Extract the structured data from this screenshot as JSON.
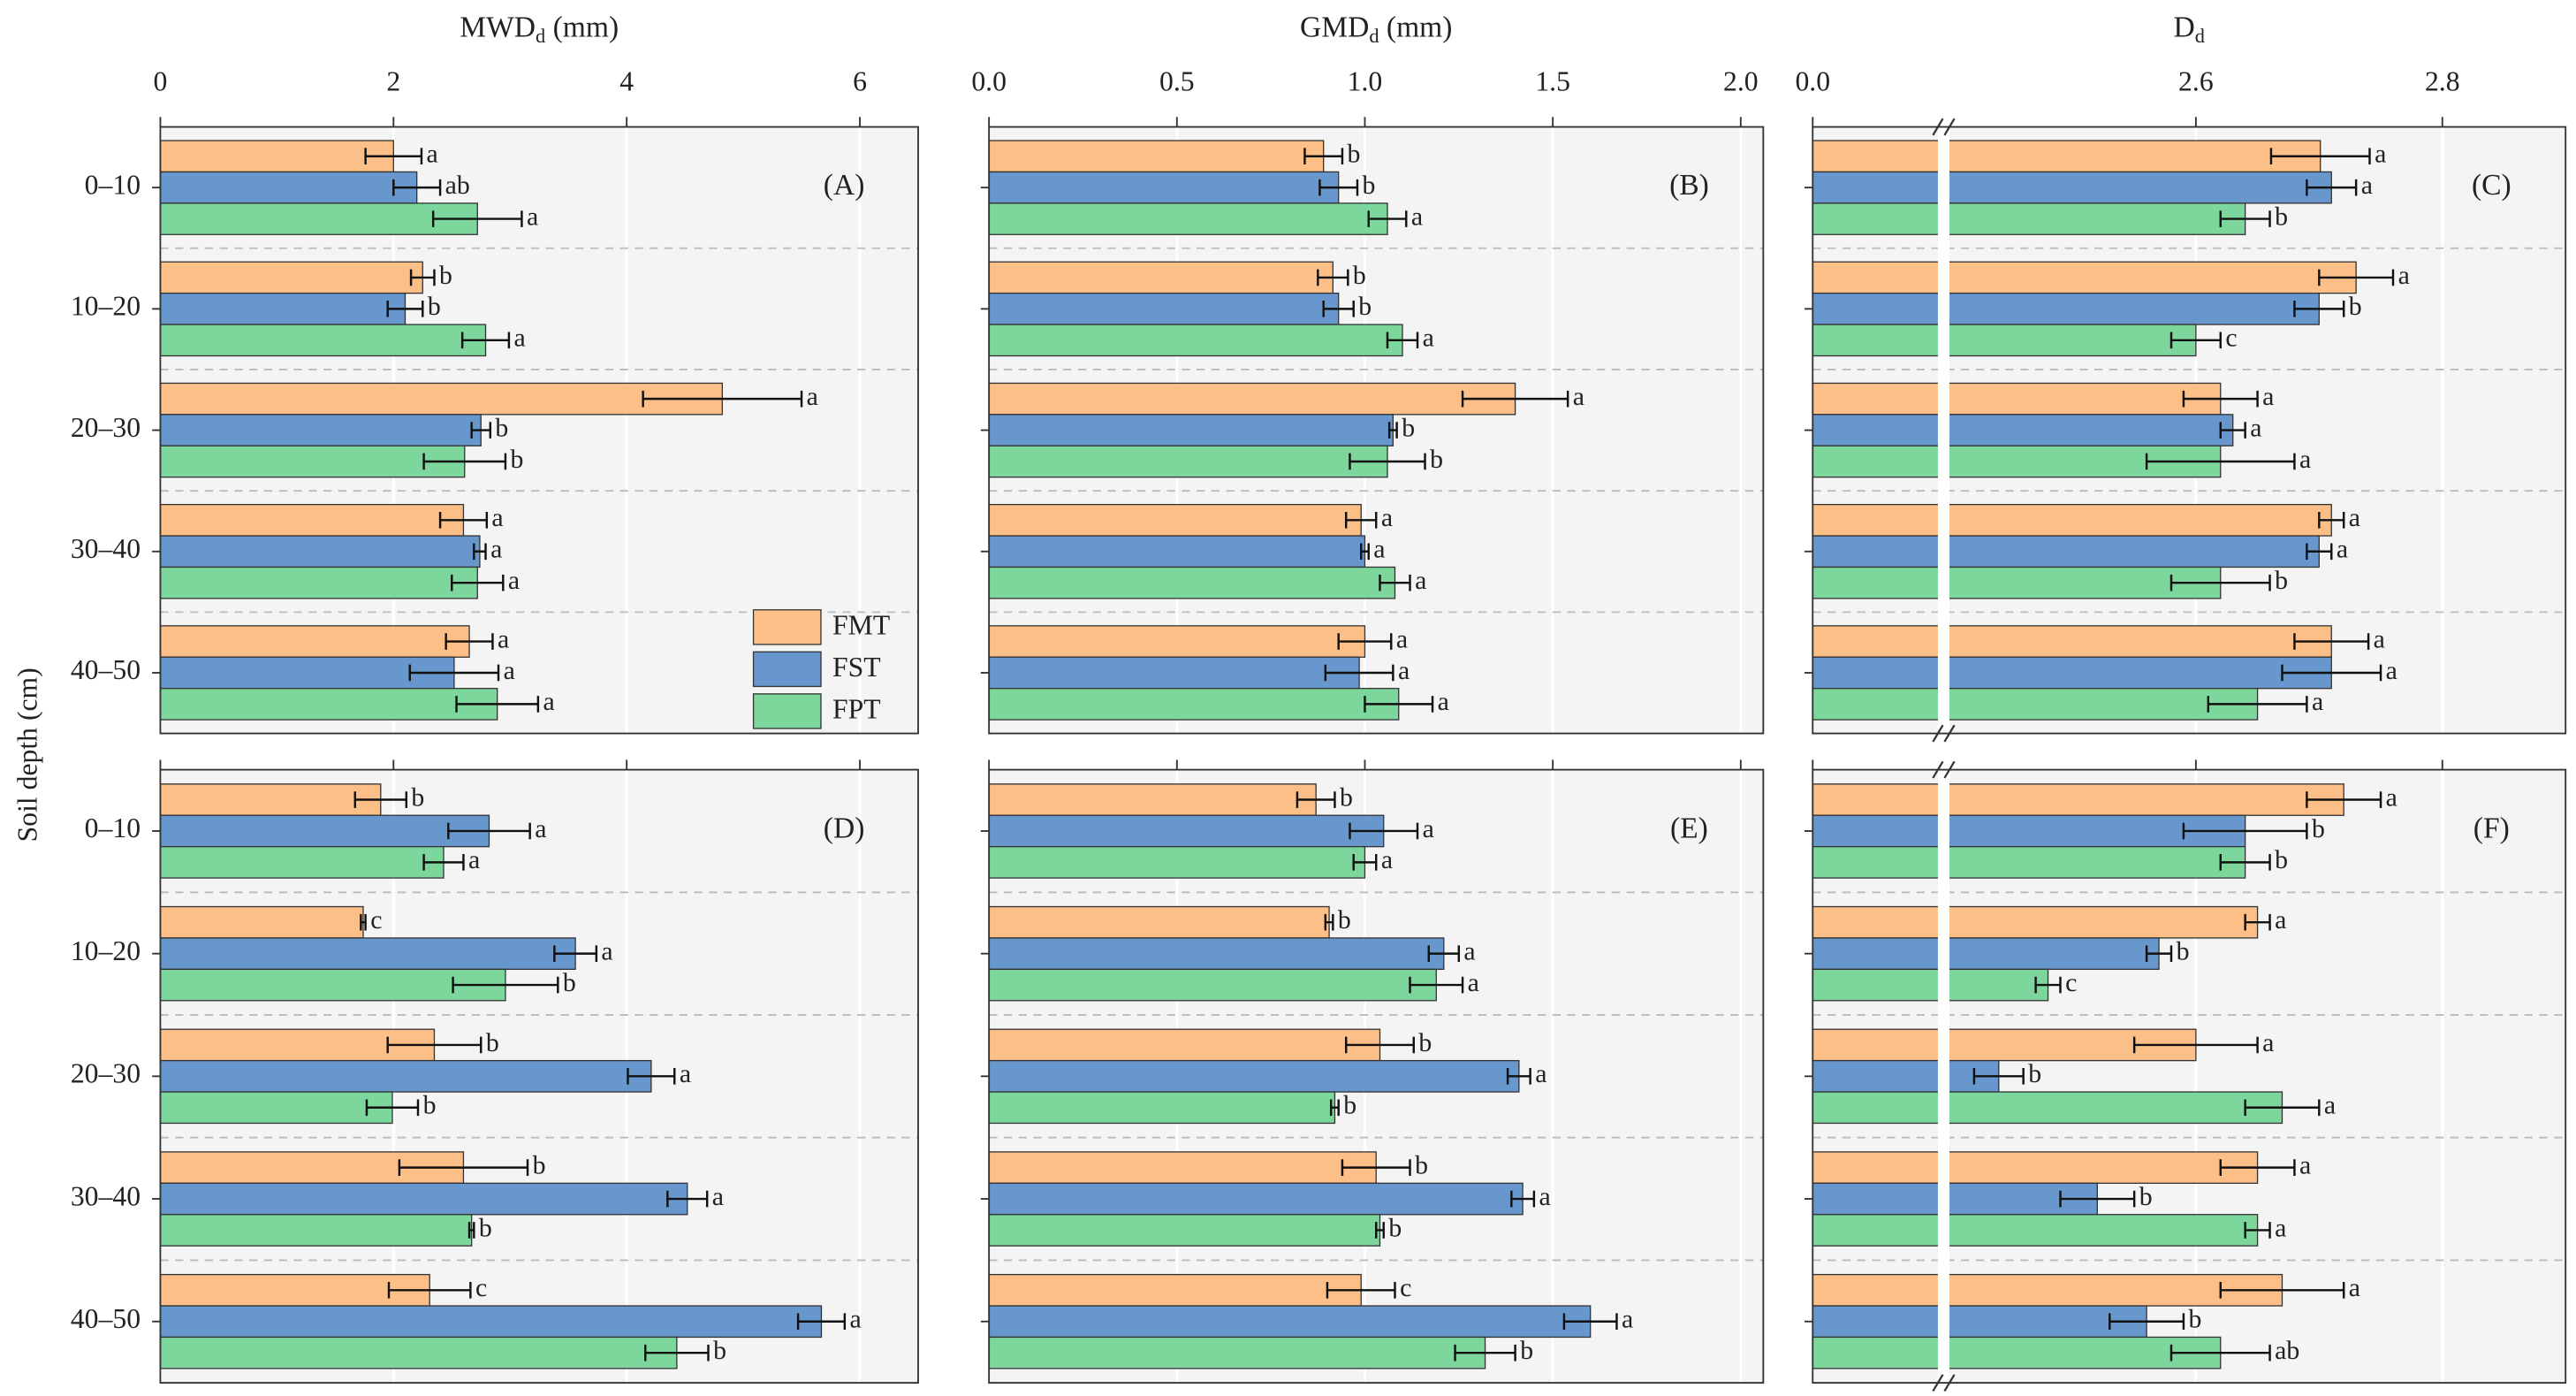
{
  "ylabel": "Soil depth (cm)",
  "legend": {
    "position": "lower right",
    "entries": [
      {
        "name": "FMT",
        "color": "#fbbf87"
      },
      {
        "name": "FST",
        "color": "#6797cc"
      },
      {
        "name": "FPT",
        "color": "#7dd69b"
      }
    ]
  },
  "chart_data": [
    {
      "type": "bar",
      "orientation": "horizontal",
      "panel": "(A)",
      "xlabel": [
        "MWD",
        "d",
        " (mm)"
      ],
      "xlim": [
        0,
        6.5
      ],
      "xticks": [
        0,
        2,
        4,
        6
      ],
      "grid": true,
      "categories": [
        "0–10",
        "10–20",
        "20–30",
        "30–40",
        "40–50"
      ],
      "series": [
        {
          "values": [
            2.0,
            2.25,
            4.82,
            2.6,
            2.65
          ],
          "errors": [
            0.24,
            0.1,
            0.68,
            0.2,
            0.2
          ],
          "letters": [
            "a",
            "b",
            "a",
            "a",
            "a"
          ]
        },
        {
          "values": [
            2.2,
            2.1,
            2.75,
            2.74,
            2.52
          ],
          "errors": [
            0.2,
            0.15,
            0.08,
            0.05,
            0.38
          ],
          "letters": [
            "ab",
            "b",
            "b",
            "a",
            "a"
          ]
        },
        {
          "values": [
            2.72,
            2.79,
            2.61,
            2.72,
            2.89
          ],
          "errors": [
            0.38,
            0.2,
            0.35,
            0.22,
            0.35
          ],
          "letters": [
            "a",
            "a",
            "b",
            "a",
            "a"
          ]
        }
      ]
    },
    {
      "type": "bar",
      "orientation": "horizontal",
      "panel": "(B)",
      "xlabel": [
        "GMD",
        "d",
        " (mm)"
      ],
      "xlim": [
        0,
        2.06
      ],
      "xticks": [
        {
          "value": 0,
          "label": "0.0"
        },
        0.5,
        {
          "value": 1,
          "label": "1.0"
        },
        1.5,
        {
          "value": 2,
          "label": "2.0"
        }
      ],
      "grid": true,
      "series": [
        {
          "values": [
            0.89,
            0.915,
            1.4,
            0.99,
            1.0
          ],
          "errors": [
            0.05,
            0.04,
            0.14,
            0.04,
            0.07
          ],
          "letters": [
            "b",
            "b",
            "a",
            "a",
            "a"
          ]
        },
        {
          "values": [
            0.93,
            0.93,
            1.075,
            1.0,
            0.985
          ],
          "errors": [
            0.05,
            0.04,
            0.01,
            0.01,
            0.09
          ],
          "letters": [
            "b",
            "b",
            "b",
            "a",
            "a"
          ]
        },
        {
          "values": [
            1.06,
            1.1,
            1.06,
            1.08,
            1.09
          ],
          "errors": [
            0.05,
            0.04,
            0.1,
            0.04,
            0.09
          ],
          "letters": [
            "a",
            "a",
            "b",
            "a",
            "a"
          ]
        }
      ]
    },
    {
      "type": "bar",
      "orientation": "horizontal",
      "panel": "(C)",
      "xlabel": [
        "D",
        "d"
      ],
      "xlim": [
        0,
        2.9
      ],
      "xbreak": [
        0.1,
        2.4
      ],
      "xticks": [
        {
          "value": 0,
          "label": "0.0"
        },
        2.6,
        2.8
      ],
      "grid": true,
      "series": [
        {
          "values": [
            2.701,
            2.73,
            2.62,
            2.71,
            2.71
          ],
          "errors": [
            0.04,
            0.03,
            0.03,
            0.01,
            0.03
          ],
          "letters": [
            "a",
            "a",
            "a",
            "a",
            "a"
          ]
        },
        {
          "values": [
            2.71,
            2.7,
            2.63,
            2.7,
            2.71
          ],
          "errors": [
            0.02,
            0.02,
            0.01,
            0.01,
            0.04
          ],
          "letters": [
            "a",
            "b",
            "a",
            "a",
            "a"
          ]
        },
        {
          "values": [
            2.64,
            2.6,
            2.62,
            2.62,
            2.65
          ],
          "errors": [
            0.02,
            0.02,
            0.06,
            0.04,
            0.04
          ],
          "letters": [
            "b",
            "c",
            "a",
            "b",
            "a"
          ]
        }
      ]
    },
    {
      "type": "bar",
      "orientation": "horizontal",
      "panel": "(D)",
      "xtick_labels": false,
      "xlim": [
        0,
        6.5
      ],
      "xticks": [
        0,
        2,
        4,
        6
      ],
      "grid": true,
      "categories": [
        "0–10",
        "10–20",
        "20–30",
        "30–40",
        "40–50"
      ],
      "series": [
        {
          "values": [
            1.89,
            1.74,
            2.35,
            2.6,
            2.31
          ],
          "errors": [
            0.22,
            0.02,
            0.4,
            0.55,
            0.35
          ],
          "letters": [
            "b",
            "c",
            "b",
            "b",
            "c"
          ]
        },
        {
          "values": [
            2.82,
            3.56,
            4.21,
            4.52,
            5.67
          ],
          "errors": [
            0.35,
            0.18,
            0.2,
            0.17,
            0.2
          ],
          "letters": [
            "a",
            "a",
            "a",
            "a",
            "a"
          ]
        },
        {
          "values": [
            2.43,
            2.96,
            1.99,
            2.67,
            4.43
          ],
          "errors": [
            0.17,
            0.45,
            0.22,
            0.02,
            0.27
          ],
          "letters": [
            "a",
            "b",
            "b",
            "b",
            "b"
          ]
        }
      ]
    },
    {
      "type": "bar",
      "orientation": "horizontal",
      "panel": "(E)",
      "xtick_labels": false,
      "xlim": [
        0,
        2.06
      ],
      "xticks": [
        0,
        0.5,
        1,
        1.5,
        2
      ],
      "grid": true,
      "series": [
        {
          "values": [
            0.87,
            0.905,
            1.04,
            1.03,
            0.99
          ],
          "errors": [
            0.05,
            0.01,
            0.09,
            0.09,
            0.09
          ],
          "letters": [
            "b",
            "b",
            "b",
            "b",
            "c"
          ]
        },
        {
          "values": [
            1.05,
            1.21,
            1.41,
            1.42,
            1.6
          ],
          "errors": [
            0.09,
            0.04,
            0.03,
            0.03,
            0.07
          ],
          "letters": [
            "a",
            "a",
            "a",
            "a",
            "a"
          ]
        },
        {
          "values": [
            1.0,
            1.19,
            0.92,
            1.04,
            1.32
          ],
          "errors": [
            0.03,
            0.07,
            0.01,
            0.01,
            0.08
          ],
          "letters": [
            "a",
            "a",
            "b",
            "b",
            "b"
          ]
        }
      ]
    },
    {
      "type": "bar",
      "orientation": "horizontal",
      "panel": "(F)",
      "xtick_labels": false,
      "xlim": [
        0,
        2.9
      ],
      "xbreak": [
        0.1,
        2.4
      ],
      "xticks": [
        0,
        2.6,
        2.8
      ],
      "grid": true,
      "series": [
        {
          "values": [
            2.72,
            2.65,
            2.6,
            2.65,
            2.67
          ],
          "errors": [
            0.03,
            0.01,
            0.05,
            0.03,
            0.05
          ],
          "letters": [
            "a",
            "a",
            "a",
            "a",
            "a"
          ]
        },
        {
          "values": [
            2.64,
            2.57,
            2.44,
            2.52,
            2.56
          ],
          "errors": [
            0.05,
            0.01,
            0.02,
            0.03,
            0.03
          ],
          "letters": [
            "b",
            "b",
            "b",
            "b",
            "b"
          ]
        },
        {
          "values": [
            2.64,
            2.48,
            2.67,
            2.65,
            2.62
          ],
          "errors": [
            0.02,
            0.01,
            0.03,
            0.01,
            0.04
          ],
          "letters": [
            "b",
            "c",
            "a",
            "a",
            "ab"
          ]
        }
      ]
    }
  ]
}
